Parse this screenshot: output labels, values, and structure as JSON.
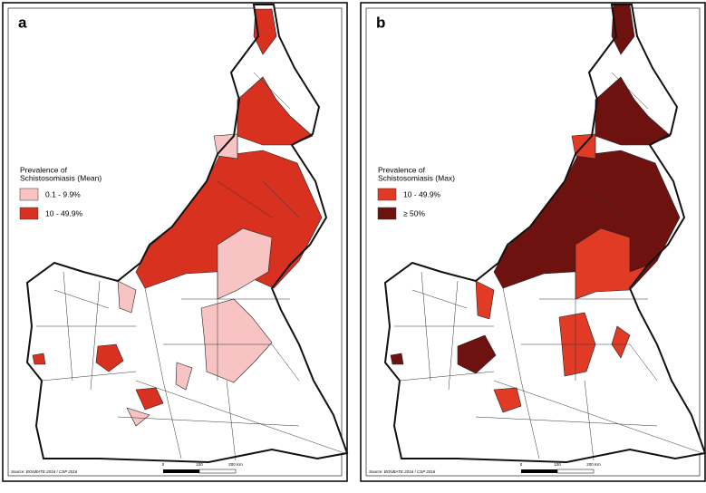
{
  "panels": [
    {
      "label": "a",
      "legend": {
        "title_lines": [
          "Prevalence of",
          "Schistosomiasis (Mean)"
        ],
        "items": [
          {
            "label": "0.1 - 9.9%",
            "color": "#f7c3c3"
          },
          {
            "label": "10 - 49.9%",
            "color": "#d9311f"
          }
        ]
      },
      "source": "Source: BONBATE 2016 / CSP 2016",
      "scale": [
        "0",
        "100",
        "200 Km"
      ]
    },
    {
      "label": "b",
      "legend": {
        "title_lines": [
          "Prevalence of",
          "Schistosomiasis (Max)"
        ],
        "items": [
          {
            "label": "10 - 49.9%",
            "color": "#e13b25"
          },
          {
            "label": "≥ 50%",
            "color": "#6e1210"
          }
        ]
      },
      "source": "Source: BONBATE 2016 / CSP 2016",
      "scale": [
        "0",
        "100",
        "200 Km"
      ]
    }
  ]
}
